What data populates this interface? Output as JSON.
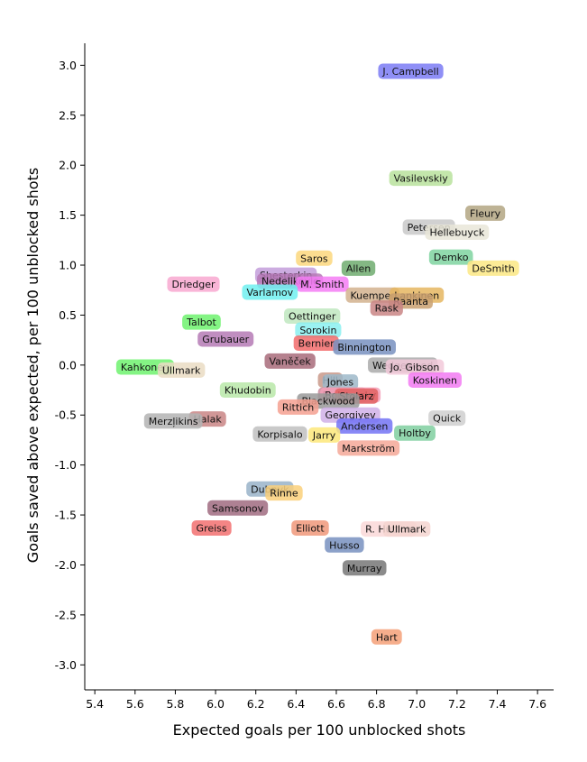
{
  "chart_data": {
    "type": "scatter",
    "title": "",
    "xlabel": "Expected goals per 100 unblocked shots",
    "ylabel": "Goals saved above expected, per 100 unblocked shots",
    "xlim": [
      5.35,
      7.68
    ],
    "ylim": [
      -3.25,
      3.22
    ],
    "xticks": [
      5.4,
      5.6,
      5.8,
      6.0,
      6.2,
      6.4,
      6.6,
      6.8,
      7.0,
      7.2,
      7.4,
      7.6
    ],
    "xtick_labels": [
      "5.4",
      "5.6",
      "5.8",
      "6.0",
      "6.2",
      "6.4",
      "6.6",
      "6.8",
      "7.0",
      "7.2",
      "7.4",
      "7.6"
    ],
    "yticks": [
      3.0,
      2.5,
      2.0,
      1.5,
      1.0,
      0.5,
      0.0,
      -0.5,
      -1.0,
      -1.5,
      -2.0,
      -2.5,
      -3.0
    ],
    "ytick_labels": [
      "3.0",
      "2.5",
      "2.0",
      "1.5",
      "1.0",
      "0.5",
      "0.0",
      "-0.5",
      "-1.0",
      "-1.5",
      "-2.0",
      "-2.5",
      "-3.0"
    ],
    "grid": false,
    "points": [
      {
        "name": "J. Campbell",
        "x": 6.97,
        "y": 2.94,
        "color": "#7b7bf5"
      },
      {
        "name": "Vasilevskiy",
        "x": 7.02,
        "y": 1.87,
        "color": "#b9e29c"
      },
      {
        "name": "Fleury",
        "x": 7.34,
        "y": 1.52,
        "color": "#b3a683"
      },
      {
        "name": "Petersen",
        "x": 7.06,
        "y": 1.38,
        "color": "#c9c9c9"
      },
      {
        "name": "Hellebuyck",
        "x": 7.2,
        "y": 1.33,
        "color": "#e9e6d8"
      },
      {
        "name": "Demko",
        "x": 7.17,
        "y": 1.08,
        "color": "#7fd3a0"
      },
      {
        "name": "DeSmith",
        "x": 7.38,
        "y": 0.97,
        "color": "#fce784"
      },
      {
        "name": "Saros",
        "x": 6.49,
        "y": 1.07,
        "color": "#fbd77c"
      },
      {
        "name": "Allen",
        "x": 6.71,
        "y": 0.97,
        "color": "#6fac6f"
      },
      {
        "name": "Shesterkin",
        "x": 6.35,
        "y": 0.9,
        "color": "#c39ddb"
      },
      {
        "name": "Nedeljkovic",
        "x": 6.37,
        "y": 0.84,
        "color": "#b578b5"
      },
      {
        "name": "M. Smith",
        "x": 6.53,
        "y": 0.81,
        "color": "#f57df5"
      },
      {
        "name": "Driedger",
        "x": 5.89,
        "y": 0.81,
        "color": "#f8a8d0"
      },
      {
        "name": "Varlamov",
        "x": 6.27,
        "y": 0.73,
        "color": "#70f0f0"
      },
      {
        "name": "Kuemper",
        "x": 6.78,
        "y": 0.7,
        "color": "#d2b28e"
      },
      {
        "name": "Lankinen",
        "x": 7.0,
        "y": 0.7,
        "color": "#e5b660"
      },
      {
        "name": "Raanta",
        "x": 6.97,
        "y": 0.64,
        "color": "#c9a070"
      },
      {
        "name": "Rask",
        "x": 6.85,
        "y": 0.57,
        "color": "#c98585"
      },
      {
        "name": "Oettinger",
        "x": 6.48,
        "y": 0.49,
        "color": "#bfe8bf"
      },
      {
        "name": "Talbot",
        "x": 5.93,
        "y": 0.43,
        "color": "#6ef26e"
      },
      {
        "name": "Sorokin",
        "x": 6.51,
        "y": 0.35,
        "color": "#8af0f0"
      },
      {
        "name": "Grubauer",
        "x": 6.05,
        "y": 0.26,
        "color": "#b57ab5"
      },
      {
        "name": "Bernier",
        "x": 6.5,
        "y": 0.22,
        "color": "#f26b6b"
      },
      {
        "name": "Binnington",
        "x": 6.74,
        "y": 0.18,
        "color": "#7890c0"
      },
      {
        "name": "Vaněček",
        "x": 6.37,
        "y": 0.04,
        "color": "#a86b7a"
      },
      {
        "name": "Wedgewood",
        "x": 6.93,
        "y": 0.0,
        "color": "#aaaaaa"
      },
      {
        "name": "Jo. Gibson",
        "x": 6.99,
        "y": -0.02,
        "color": "#f2c9d9"
      },
      {
        "name": "Kahkonen",
        "x": 5.65,
        "y": -0.02,
        "color": "#6ef26e"
      },
      {
        "name": "Ullmark",
        "x": 5.83,
        "y": -0.05,
        "color": "#eadcc3"
      },
      {
        "name": "Koskinen",
        "x": 7.09,
        "y": -0.15,
        "color": "#f27af2"
      },
      {
        "name": "Hill",
        "x": 6.57,
        "y": -0.15,
        "color": "#c9998a"
      },
      {
        "name": "Jones",
        "x": 6.62,
        "y": -0.17,
        "color": "#9db8c9"
      },
      {
        "name": "Khudobin",
        "x": 6.16,
        "y": -0.25,
        "color": "#b8e8a8"
      },
      {
        "name": "Brossoit",
        "x": 6.63,
        "y": -0.3,
        "color": "#c98a9a"
      },
      {
        "name": "Bobrovsky",
        "x": 6.67,
        "y": -0.3,
        "color": "#f5a0b8"
      },
      {
        "name": "Stolarz",
        "x": 6.7,
        "y": -0.31,
        "color": "#e06060"
      },
      {
        "name": "Blackwood",
        "x": 6.56,
        "y": -0.36,
        "color": "#999999"
      },
      {
        "name": "Rittich",
        "x": 6.41,
        "y": -0.42,
        "color": "#f5a090"
      },
      {
        "name": "Georgiyev",
        "x": 6.67,
        "y": -0.5,
        "color": "#d0b0e8"
      },
      {
        "name": "Quick",
        "x": 7.15,
        "y": -0.53,
        "color": "#cfcfcf"
      },
      {
        "name": "Halak",
        "x": 5.96,
        "y": -0.54,
        "color": "#c98585"
      },
      {
        "name": "Merzļikins",
        "x": 5.79,
        "y": -0.56,
        "color": "#b3b3b3"
      },
      {
        "name": "Andersen",
        "x": 6.74,
        "y": -0.61,
        "color": "#7373f5"
      },
      {
        "name": "Holtby",
        "x": 6.99,
        "y": -0.68,
        "color": "#80cfa0"
      },
      {
        "name": "Korpisalo",
        "x": 6.32,
        "y": -0.69,
        "color": "#c0c0c0"
      },
      {
        "name": "Jarry",
        "x": 6.54,
        "y": -0.7,
        "color": "#fde87a"
      },
      {
        "name": "Markström",
        "x": 6.76,
        "y": -0.83,
        "color": "#f5a898"
      },
      {
        "name": "Dubnyk",
        "x": 6.27,
        "y": -1.24,
        "color": "#99b3c9"
      },
      {
        "name": "Rinne",
        "x": 6.34,
        "y": -1.28,
        "color": "#fad07a"
      },
      {
        "name": "Samsonov",
        "x": 6.11,
        "y": -1.43,
        "color": "#a06b80"
      },
      {
        "name": "Greiss",
        "x": 5.98,
        "y": -1.63,
        "color": "#f27070"
      },
      {
        "name": "Elliott",
        "x": 6.47,
        "y": -1.63,
        "color": "#f0987a"
      },
      {
        "name": "R. Hutton",
        "x": 6.86,
        "y": -1.64,
        "color": "#fad8d8"
      },
      {
        "name": "Ullmark",
        "x": 6.95,
        "y": -1.64,
        "color": "#f5d5d0",
        "hidden_under": true
      },
      {
        "name": "Husso",
        "x": 6.64,
        "y": -1.8,
        "color": "#7890c0"
      },
      {
        "name": "Murray",
        "x": 6.74,
        "y": -2.03,
        "color": "#777777"
      },
      {
        "name": "Hart",
        "x": 6.85,
        "y": -2.72,
        "color": "#f5a078"
      }
    ]
  }
}
